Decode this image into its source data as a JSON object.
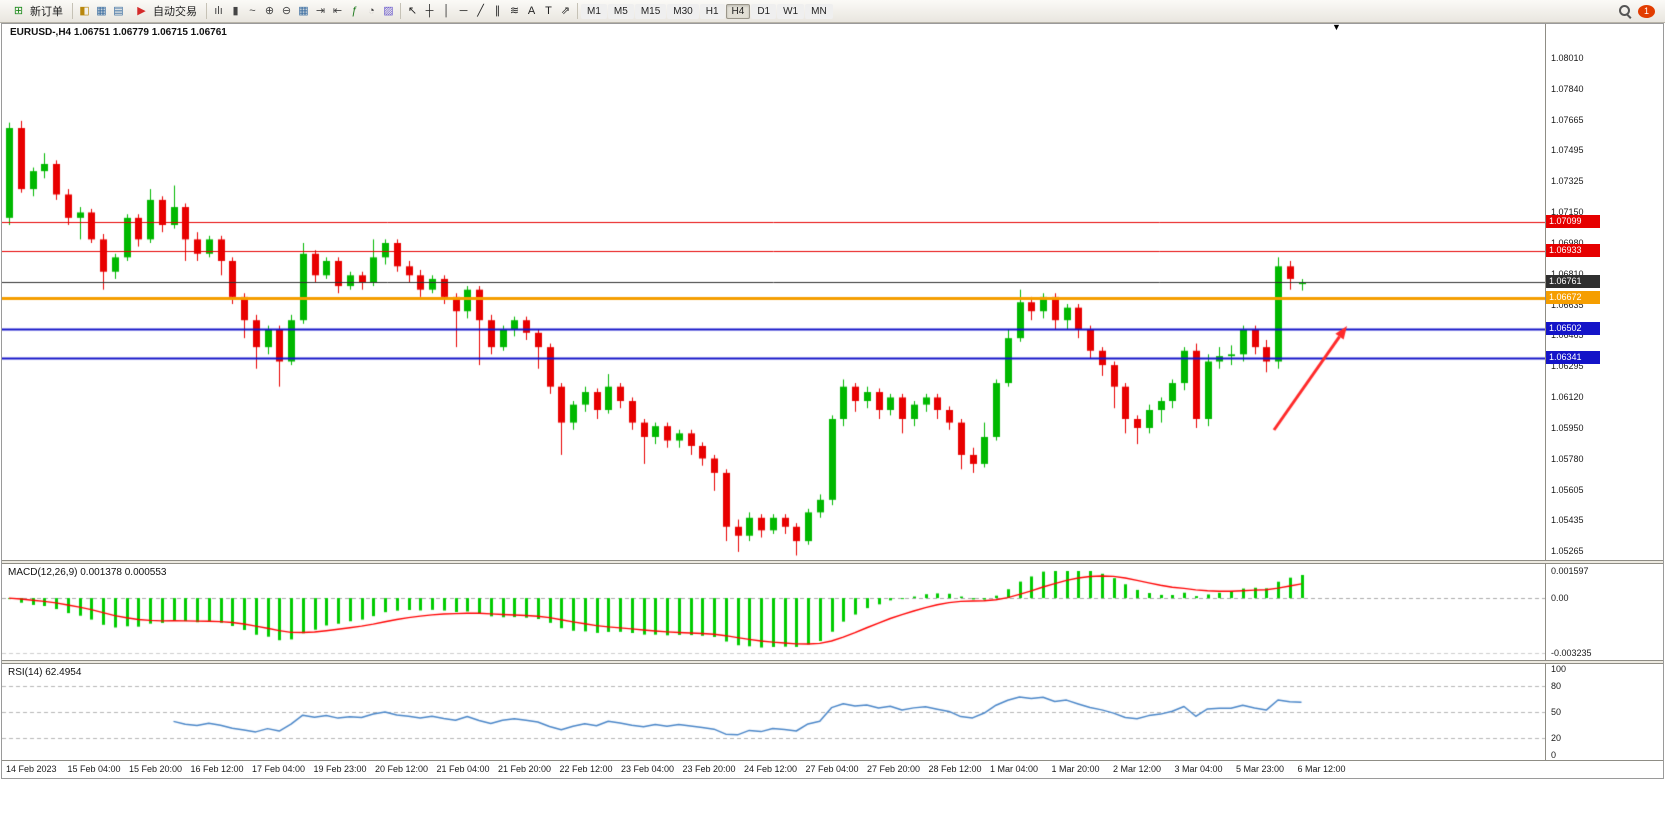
{
  "toolbar": {
    "new_order": {
      "label": "新订单",
      "glyph": "⊞"
    },
    "auto_trading": {
      "label": "自动交易",
      "glyph": "▶"
    },
    "left_icons": [
      {
        "name": "alerts",
        "glyph": "◧",
        "color": "#b8860b"
      },
      {
        "name": "market-watch",
        "glyph": "▦",
        "color": "#33689e"
      },
      {
        "name": "terminal",
        "glyph": "▤",
        "color": "#33689e"
      }
    ],
    "chart_tools": [
      {
        "name": "bar-chart",
        "glyph": "ılı",
        "color": "#444444"
      },
      {
        "name": "candlestick-chart",
        "glyph": "▮",
        "color": "#444444"
      },
      {
        "name": "line-chart",
        "glyph": "~",
        "color": "#444444"
      },
      {
        "name": "zoom-in",
        "glyph": "⊕",
        "color": "#444444"
      },
      {
        "name": "zoom-out",
        "glyph": "⊖",
        "color": "#444444"
      },
      {
        "name": "tile-windows",
        "glyph": "▦",
        "color": "#33689e"
      },
      {
        "name": "auto-scroll",
        "glyph": "⇥",
        "color": "#444444"
      },
      {
        "name": "chart-shift",
        "glyph": "⇤",
        "color": "#444444"
      },
      {
        "name": "indicators",
        "glyph": "ƒ",
        "color": "#1f7a1f"
      },
      {
        "name": "periods",
        "glyph": "◔",
        "color": "#444444"
      },
      {
        "name": "templates",
        "glyph": "▨",
        "color": "#6a5acd"
      }
    ],
    "draw_tools": [
      {
        "name": "cursor",
        "glyph": "↖",
        "color": "#222222"
      },
      {
        "name": "crosshair",
        "glyph": "┼",
        "color": "#222222"
      },
      {
        "name": "vertical-line",
        "glyph": "│",
        "color": "#222222"
      },
      {
        "name": "horizontal-line",
        "glyph": "─",
        "color": "#222222"
      },
      {
        "name": "trendline",
        "glyph": "╱",
        "color": "#222222"
      },
      {
        "name": "equidistant-channel",
        "glyph": "∥",
        "color": "#222222"
      },
      {
        "name": "fibonacci",
        "glyph": "≋",
        "color": "#222222"
      },
      {
        "name": "text",
        "glyph": "A",
        "color": "#222222"
      },
      {
        "name": "text-label",
        "glyph": "T",
        "color": "#222222"
      },
      {
        "name": "arrows",
        "glyph": "⇗",
        "color": "#222222"
      }
    ],
    "timeframes": [
      "M1",
      "M5",
      "M15",
      "M30",
      "H1",
      "H4",
      "D1",
      "W1",
      "MN"
    ],
    "active_timeframe": "H4",
    "badge": "1"
  },
  "chart": {
    "title": "EURUSD-,H4  1.06751 1.06779 1.06715 1.06761",
    "symbol": "EURUSD-",
    "period": "H4",
    "ohlc": {
      "open": "1.06751",
      "high": "1.06779",
      "low": "1.06715",
      "close": "1.06761"
    },
    "shift_glyph": "▼",
    "levels": [
      {
        "label": "1.07099",
        "price": 1.07099,
        "color": "#e60000",
        "lw": 1
      },
      {
        "label": "1.06933",
        "price": 1.06933,
        "color": "#e60000",
        "lw": 1
      },
      {
        "label": "1.06761",
        "price": 1.06761,
        "color": "#2f2f2f",
        "lw": 1,
        "current": true
      },
      {
        "label": "1.06672",
        "price": 1.06672,
        "color": "#f59e00",
        "lw": 3
      },
      {
        "label": "1.06502",
        "price": 1.06502,
        "color": "#1414c8",
        "lw": 2
      },
      {
        "label": "1.06341",
        "price": 1.06341,
        "color": "#1414c8",
        "lw": 2
      }
    ],
    "price_axis": [
      "1.08010",
      "1.07840",
      "1.07665",
      "1.07495",
      "1.07325",
      "1.07150",
      "1.06980",
      "1.06810",
      "1.06635",
      "1.06465",
      "1.06295",
      "1.06120",
      "1.05950",
      "1.05780",
      "1.05605",
      "1.05435",
      "1.05265"
    ],
    "time_axis": [
      "14 Feb 2023",
      "15 Feb 04:00",
      "15 Feb 20:00",
      "16 Feb 12:00",
      "17 Feb 04:00",
      "19 Feb 23:00",
      "20 Feb 12:00",
      "21 Feb 04:00",
      "21 Feb 20:00",
      "22 Feb 12:00",
      "23 Feb 04:00",
      "23 Feb 20:00",
      "24 Feb 12:00",
      "27 Feb 04:00",
      "27 Feb 20:00",
      "28 Feb 12:00",
      "1 Mar 04:00",
      "1 Mar 20:00",
      "2 Mar 12:00",
      "3 Mar 04:00",
      "5 Mar 23:00",
      "6 Mar 12:00"
    ],
    "up_color": "#00b800",
    "down_color": "#e80000",
    "arrow_color": "#ff2a2a"
  },
  "chart_data": {
    "type": "candlestick",
    "title": "EURUSD- H4",
    "candles_ohlc": [
      [
        1.0712,
        1.0765,
        1.0708,
        1.0762
      ],
      [
        1.0762,
        1.0766,
        1.0726,
        1.0728
      ],
      [
        1.0728,
        1.074,
        1.0724,
        1.0738
      ],
      [
        1.0738,
        1.0748,
        1.0734,
        1.0742
      ],
      [
        1.0742,
        1.0744,
        1.0722,
        1.0725
      ],
      [
        1.0725,
        1.0728,
        1.0708,
        1.0712
      ],
      [
        1.0712,
        1.0718,
        1.07,
        1.0715
      ],
      [
        1.0715,
        1.0717,
        1.0698,
        1.07
      ],
      [
        1.07,
        1.0703,
        1.0672,
        1.0682
      ],
      [
        1.0682,
        1.0692,
        1.0678,
        1.069
      ],
      [
        1.069,
        1.0714,
        1.0688,
        1.0712
      ],
      [
        1.0712,
        1.0714,
        1.0696,
        1.07
      ],
      [
        1.07,
        1.0728,
        1.0698,
        1.0722
      ],
      [
        1.0722,
        1.0724,
        1.0704,
        1.0708
      ],
      [
        1.0708,
        1.073,
        1.0706,
        1.0718
      ],
      [
        1.0718,
        1.072,
        1.0688,
        1.07
      ],
      [
        1.07,
        1.0704,
        1.0688,
        1.0692
      ],
      [
        1.0692,
        1.0702,
        1.069,
        1.07
      ],
      [
        1.07,
        1.0702,
        1.068,
        1.0688
      ],
      [
        1.0688,
        1.069,
        1.0664,
        1.0668
      ],
      [
        1.0668,
        1.067,
        1.0645,
        1.0655
      ],
      [
        1.0655,
        1.0658,
        1.0628,
        1.064
      ],
      [
        1.064,
        1.0652,
        1.0636,
        1.065
      ],
      [
        1.065,
        1.0652,
        1.0618,
        1.0632
      ],
      [
        1.0632,
        1.0658,
        1.063,
        1.0655
      ],
      [
        1.0655,
        1.0698,
        1.0653,
        1.0692
      ],
      [
        1.0692,
        1.0694,
        1.0676,
        1.068
      ],
      [
        1.068,
        1.069,
        1.0678,
        1.0688
      ],
      [
        1.0688,
        1.069,
        1.067,
        1.0674
      ],
      [
        1.0674,
        1.0682,
        1.0672,
        1.068
      ],
      [
        1.068,
        1.0682,
        1.0672,
        1.0676
      ],
      [
        1.0676,
        1.07,
        1.0674,
        1.069
      ],
      [
        1.069,
        1.07,
        1.0686,
        1.0698
      ],
      [
        1.0698,
        1.07,
        1.0682,
        1.0685
      ],
      [
        1.0685,
        1.0688,
        1.0676,
        1.068
      ],
      [
        1.068,
        1.0683,
        1.0668,
        1.0672
      ],
      [
        1.0672,
        1.068,
        1.067,
        1.0678
      ],
      [
        1.0678,
        1.068,
        1.0664,
        1.0668
      ],
      [
        1.0668,
        1.067,
        1.064,
        1.066
      ],
      [
        1.066,
        1.0674,
        1.0656,
        1.0672
      ],
      [
        1.0672,
        1.0674,
        1.063,
        1.0655
      ],
      [
        1.0655,
        1.0658,
        1.0636,
        1.064
      ],
      [
        1.064,
        1.0652,
        1.0638,
        1.065
      ],
      [
        1.065,
        1.0657,
        1.0646,
        1.0655
      ],
      [
        1.0655,
        1.0657,
        1.0644,
        1.0648
      ],
      [
        1.0648,
        1.065,
        1.0628,
        1.064
      ],
      [
        1.064,
        1.0642,
        1.0614,
        1.0618
      ],
      [
        1.0618,
        1.062,
        1.058,
        1.0598
      ],
      [
        1.0598,
        1.061,
        1.0594,
        1.0608
      ],
      [
        1.0608,
        1.0618,
        1.0604,
        1.0615
      ],
      [
        1.0615,
        1.0617,
        1.06,
        1.0605
      ],
      [
        1.0605,
        1.0625,
        1.0603,
        1.0618
      ],
      [
        1.0618,
        1.062,
        1.0606,
        1.061
      ],
      [
        1.061,
        1.0612,
        1.0594,
        1.0598
      ],
      [
        1.0598,
        1.06,
        1.0575,
        1.059
      ],
      [
        1.059,
        1.0598,
        1.0586,
        1.0596
      ],
      [
        1.0596,
        1.0598,
        1.0584,
        1.0588
      ],
      [
        1.0588,
        1.0594,
        1.0584,
        1.0592
      ],
      [
        1.0592,
        1.0594,
        1.058,
        1.0585
      ],
      [
        1.0585,
        1.0587,
        1.0574,
        1.0578
      ],
      [
        1.0578,
        1.058,
        1.056,
        1.057
      ],
      [
        1.057,
        1.0572,
        1.0532,
        1.054
      ],
      [
        1.054,
        1.0544,
        1.0526,
        1.0535
      ],
      [
        1.0535,
        1.0548,
        1.0532,
        1.0545
      ],
      [
        1.0545,
        1.0547,
        1.0534,
        1.0538
      ],
      [
        1.0538,
        1.0547,
        1.0536,
        1.0545
      ],
      [
        1.0545,
        1.0547,
        1.0536,
        1.054
      ],
      [
        1.054,
        1.0542,
        1.0524,
        1.0532
      ],
      [
        1.0532,
        1.055,
        1.053,
        1.0548
      ],
      [
        1.0548,
        1.0558,
        1.0545,
        1.0555
      ],
      [
        1.0555,
        1.0602,
        1.0552,
        1.06
      ],
      [
        1.06,
        1.0622,
        1.0596,
        1.0618
      ],
      [
        1.0618,
        1.062,
        1.0604,
        1.061
      ],
      [
        1.061,
        1.0618,
        1.0606,
        1.0615
      ],
      [
        1.0615,
        1.0617,
        1.06,
        1.0605
      ],
      [
        1.0605,
        1.0614,
        1.0602,
        1.0612
      ],
      [
        1.0612,
        1.0614,
        1.0592,
        1.06
      ],
      [
        1.06,
        1.061,
        1.0596,
        1.0608
      ],
      [
        1.0608,
        1.0614,
        1.0604,
        1.0612
      ],
      [
        1.0612,
        1.0614,
        1.06,
        1.0605
      ],
      [
        1.0605,
        1.0607,
        1.0594,
        1.0598
      ],
      [
        1.0598,
        1.06,
        1.0572,
        1.058
      ],
      [
        1.058,
        1.0584,
        1.057,
        1.0575
      ],
      [
        1.0575,
        1.0598,
        1.0573,
        1.059
      ],
      [
        1.059,
        1.0622,
        1.0588,
        1.062
      ],
      [
        1.062,
        1.065,
        1.0618,
        1.0645
      ],
      [
        1.0645,
        1.0672,
        1.0643,
        1.0665
      ],
      [
        1.0665,
        1.0668,
        1.0655,
        1.066
      ],
      [
        1.066,
        1.067,
        1.0656,
        1.0668
      ],
      [
        1.0668,
        1.067,
        1.065,
        1.0655
      ],
      [
        1.0655,
        1.0664,
        1.065,
        1.0662
      ],
      [
        1.0662,
        1.0664,
        1.0645,
        1.065
      ],
      [
        1.065,
        1.0652,
        1.0634,
        1.0638
      ],
      [
        1.0638,
        1.064,
        1.0624,
        1.063
      ],
      [
        1.063,
        1.0632,
        1.0606,
        1.0618
      ],
      [
        1.0618,
        1.062,
        1.0592,
        1.06
      ],
      [
        1.06,
        1.0602,
        1.0586,
        1.0595
      ],
      [
        1.0595,
        1.0608,
        1.0592,
        1.0605
      ],
      [
        1.0605,
        1.0612,
        1.0598,
        1.061
      ],
      [
        1.061,
        1.0622,
        1.0606,
        1.062
      ],
      [
        1.062,
        1.064,
        1.0616,
        1.0638
      ],
      [
        1.0638,
        1.0642,
        1.0595,
        1.06
      ],
      [
        1.06,
        1.0636,
        1.0596,
        1.0632
      ],
      [
        1.0632,
        1.064,
        1.0628,
        1.0635
      ],
      [
        1.0635,
        1.0641,
        1.063,
        1.0636
      ],
      [
        1.0636,
        1.0652,
        1.0632,
        1.065
      ],
      [
        1.065,
        1.0652,
        1.0636,
        1.064
      ],
      [
        1.064,
        1.0644,
        1.0626,
        1.0632
      ],
      [
        1.0632,
        1.069,
        1.0628,
        1.0685
      ],
      [
        1.0685,
        1.0688,
        1.0672,
        1.0678
      ],
      [
        1.06751,
        1.06779,
        1.06715,
        1.06761
      ]
    ]
  },
  "macd": {
    "label": "MACD(12,26,9) 0.001378 0.000553",
    "params": [
      12,
      26,
      9
    ],
    "value": "0.001378",
    "signal": "0.000553",
    "axis": [
      "0.001597",
      "0.00",
      "-0.003235"
    ],
    "hist_color": "#00cc00",
    "signal_color": "#ff0000"
  },
  "rsi": {
    "label": "RSI(14) 62.4954",
    "period": 14,
    "value": "62.4954",
    "axis": [
      "100",
      "80",
      "50",
      "20",
      "0"
    ],
    "levels": [
      80,
      50,
      20
    ],
    "line_color": "#4a86c8"
  }
}
